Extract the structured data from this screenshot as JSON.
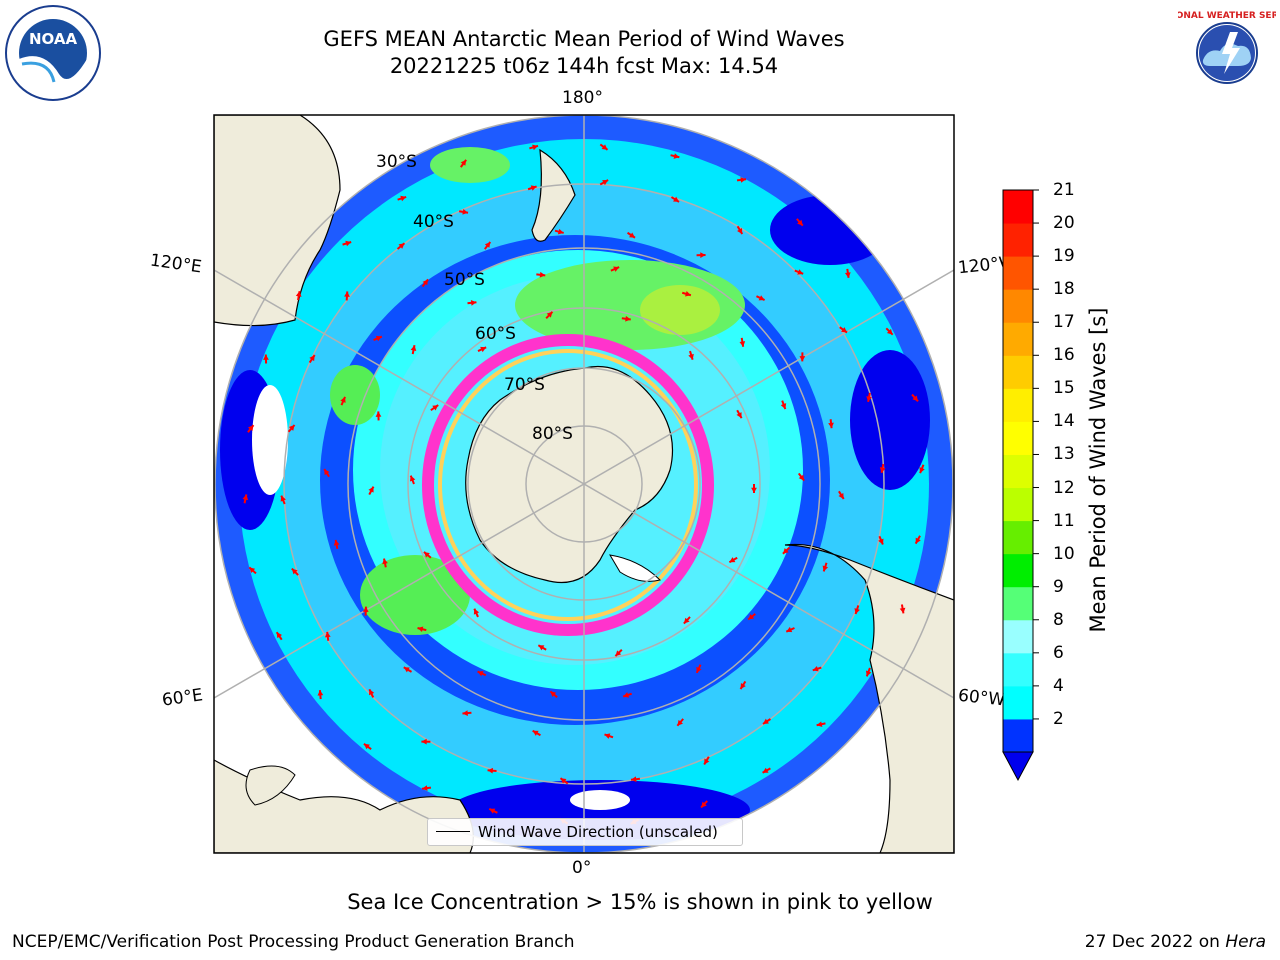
{
  "title": {
    "line1": "GEFS MEAN Antarctic Mean Period of Wind Waves",
    "line2": "20221225 t06z 144h fcst   Max: 14.54"
  },
  "logos": {
    "left": {
      "name": "noaa-logo",
      "text": "NOAA"
    },
    "right": {
      "name": "nws-logo",
      "text": "NATIONAL WEATHER SERVICE"
    }
  },
  "map": {
    "longitude_labels": {
      "top": "180°",
      "bottom": "0°",
      "upper_left": "120°E",
      "lower_left": "60°E",
      "upper_right": "120°W",
      "lower_right": "60°W"
    },
    "latitude_labels": [
      "30°S",
      "40°S",
      "50°S",
      "60°S",
      "70°S",
      "80°S"
    ],
    "colors": {
      "land": "#efecdb",
      "ocean_high": "#58f07c",
      "ocean_mid": "#33ffff",
      "ocean_low": "#0000ff",
      "arrows": "#ff0000",
      "sea_ice": "#ff33cc"
    }
  },
  "colorbar": {
    "label": "Mean Period of Wind Waves [s]",
    "ticks": [
      "21",
      "20",
      "19",
      "18",
      "17",
      "16",
      "15",
      "14",
      "13",
      "12",
      "11",
      "10",
      "9",
      "8",
      "6",
      "4",
      "2"
    ],
    "levels": [
      2,
      4,
      6,
      8,
      9,
      10,
      11,
      12,
      13,
      14,
      15,
      16,
      17,
      18,
      19,
      20,
      21
    ],
    "colors": [
      "#0033ff",
      "#00ffff",
      "#33ffff",
      "#99ffff",
      "#55ff77",
      "#00ee00",
      "#66ee00",
      "#bbff00",
      "#ddff00",
      "#ffff00",
      "#ffee00",
      "#ffcc00",
      "#ffaa00",
      "#ff8800",
      "#ff5500",
      "#ff2200",
      "#ff0000"
    ],
    "extend_color": "#0000ee"
  },
  "legend": {
    "label": "Wind Wave Direction (unscaled)"
  },
  "note": "Sea Ice Concentration > 15% is shown in pink to yellow",
  "footer": {
    "left": "NCEP/EMC/Verification Post Processing Product Generation Branch",
    "right_date": "27 Dec 2022 on ",
    "right_host": "Hera"
  }
}
